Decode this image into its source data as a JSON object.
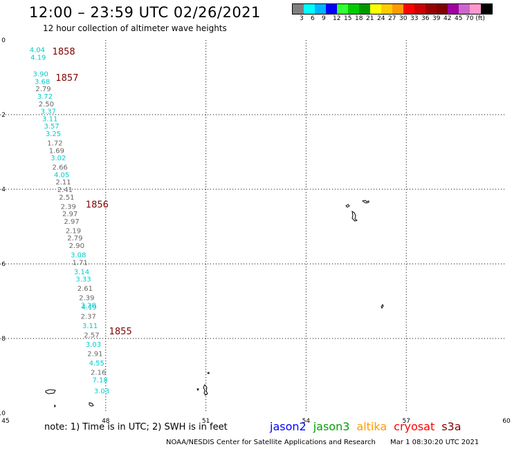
{
  "header": {
    "title": "12:00 – 23:59 UTC 02/26/2021",
    "subtitle": "12 hour collection of altimeter wave heights"
  },
  "legend": {
    "colors": [
      "#7f7f7f",
      "#00ffff",
      "#00b2ff",
      "#0000ff",
      "#33ff33",
      "#00cc00",
      "#009900",
      "#ffff00",
      "#ffcc00",
      "#ff9900",
      "#ff0000",
      "#cc0000",
      "#990000",
      "#800000",
      "#a000a0",
      "#cc66cc",
      "#ff99cc",
      "#000000"
    ],
    "labels": [
      "3",
      "6",
      "9",
      "12",
      "15",
      "18",
      "21",
      "24",
      "27",
      "30",
      "33",
      "36",
      "39",
      "42",
      "45",
      "70 (ft)"
    ]
  },
  "axes": {
    "x_ticks": [
      "45",
      "48",
      "51",
      "54",
      "57",
      "60"
    ],
    "y_ticks": [
      "0",
      "−2",
      "−4",
      "−6",
      "−8",
      "−10"
    ]
  },
  "chart_data": {
    "type": "scatter",
    "xlabel": "",
    "ylabel": "",
    "xlim": [
      45,
      60
    ],
    "ylim": [
      -10,
      0
    ],
    "grid": true,
    "times": [
      {
        "text": "1858",
        "x": 46.4,
        "y": -0.3
      },
      {
        "text": "1857",
        "x": 46.5,
        "y": -1.0
      },
      {
        "text": "1856",
        "x": 47.4,
        "y": -4.4
      },
      {
        "text": "1855",
        "x": 48.1,
        "y": -7.8
      }
    ],
    "points": [
      {
        "x": 45.95,
        "y": -0.25,
        "swh": "4.04",
        "color": "#00cccc"
      },
      {
        "x": 45.98,
        "y": -0.45,
        "swh": "4.19",
        "color": "#00cccc"
      },
      {
        "x": 46.05,
        "y": -0.9,
        "swh": "3.90",
        "color": "#00cccc"
      },
      {
        "x": 46.1,
        "y": -1.1,
        "swh": "3.68",
        "color": "#00cccc"
      },
      {
        "x": 46.13,
        "y": -1.3,
        "swh": "2.79",
        "color": "#666666"
      },
      {
        "x": 46.18,
        "y": -1.5,
        "swh": "3.72",
        "color": "#00cccc"
      },
      {
        "x": 46.22,
        "y": -1.7,
        "swh": "2.50",
        "color": "#666666"
      },
      {
        "x": 46.28,
        "y": -1.9,
        "swh": "3.37",
        "color": "#00cccc"
      },
      {
        "x": 46.33,
        "y": -2.1,
        "swh": "3.11",
        "color": "#00cccc"
      },
      {
        "x": 46.38,
        "y": -2.3,
        "swh": "3.57",
        "color": "#00cccc"
      },
      {
        "x": 46.43,
        "y": -2.5,
        "swh": "3.25",
        "color": "#00cccc"
      },
      {
        "x": 46.48,
        "y": -2.75,
        "swh": "1.72",
        "color": "#666666"
      },
      {
        "x": 46.53,
        "y": -2.95,
        "swh": "1.69",
        "color": "#666666"
      },
      {
        "x": 46.58,
        "y": -3.15,
        "swh": "3.02",
        "color": "#00cccc"
      },
      {
        "x": 46.63,
        "y": -3.4,
        "swh": "2.66",
        "color": "#666666"
      },
      {
        "x": 46.68,
        "y": -3.6,
        "swh": "4.05",
        "color": "#00cccc"
      },
      {
        "x": 46.73,
        "y": -3.8,
        "swh": "2.11",
        "color": "#666666"
      },
      {
        "x": 46.78,
        "y": -4.0,
        "swh": "2.41",
        "color": "#666666"
      },
      {
        "x": 46.83,
        "y": -4.2,
        "swh": "2.51",
        "color": "#666666"
      },
      {
        "x": 46.88,
        "y": -4.45,
        "swh": "2.39",
        "color": "#666666"
      },
      {
        "x": 46.93,
        "y": -4.65,
        "swh": "2.97",
        "color": "#666666"
      },
      {
        "x": 46.98,
        "y": -4.85,
        "swh": "2.97",
        "color": "#666666"
      },
      {
        "x": 47.03,
        "y": -5.1,
        "swh": "2.19",
        "color": "#666666"
      },
      {
        "x": 47.08,
        "y": -5.3,
        "swh": "2.79",
        "color": "#666666"
      },
      {
        "x": 47.13,
        "y": -5.5,
        "swh": "2.90",
        "color": "#666666"
      },
      {
        "x": 47.18,
        "y": -5.75,
        "swh": "3.08",
        "color": "#00cccc"
      },
      {
        "x": 47.23,
        "y": -5.95,
        "swh": "1.71",
        "color": "#666666"
      },
      {
        "x": 47.28,
        "y": -6.2,
        "swh": "3.14",
        "color": "#00cccc"
      },
      {
        "x": 47.33,
        "y": -6.4,
        "swh": "3.33",
        "color": "#00cccc"
      },
      {
        "x": 47.38,
        "y": -6.65,
        "swh": "2.61",
        "color": "#666666"
      },
      {
        "x": 47.43,
        "y": -6.9,
        "swh": "2.39",
        "color": "#666666"
      },
      {
        "x": 47.48,
        "y": -7.1,
        "swh": "3.28",
        "color": "#00cccc"
      },
      {
        "x": 47.5,
        "y": -7.15,
        "swh": "4.19",
        "color": "#00cccc"
      },
      {
        "x": 47.48,
        "y": -7.4,
        "swh": "2.37",
        "color": "#666666"
      },
      {
        "x": 47.53,
        "y": -7.65,
        "swh": "3.11",
        "color": "#00cccc"
      },
      {
        "x": 47.58,
        "y": -7.9,
        "swh": "2.57",
        "color": "#666666"
      },
      {
        "x": 47.63,
        "y": -8.15,
        "swh": "3.03",
        "color": "#00cccc"
      },
      {
        "x": 47.68,
        "y": -8.4,
        "swh": "2.91",
        "color": "#666666"
      },
      {
        "x": 47.73,
        "y": -8.65,
        "swh": "4.55",
        "color": "#00cccc"
      },
      {
        "x": 47.78,
        "y": -8.9,
        "swh": "2.16",
        "color": "#666666"
      },
      {
        "x": 47.83,
        "y": -9.1,
        "swh": "7.18",
        "color": "#00cccc"
      },
      {
        "x": 47.88,
        "y": -9.4,
        "swh": "3.03",
        "color": "#00cccc"
      }
    ]
  },
  "footer": {
    "note": "note:  1) Time is in UTC;  2) SWH is in feet",
    "satellites": [
      {
        "name": "jason2",
        "color": "#0000ff"
      },
      {
        "name": "jason3",
        "color": "#00a000"
      },
      {
        "name": "altika",
        "color": "#ff9900"
      },
      {
        "name": "cryosat",
        "color": "#ff0000"
      },
      {
        "name": "s3a",
        "color": "#800000"
      }
    ],
    "credit": "NOAA/NESDIS Center for Satellite Applications and Research",
    "timestamp": "Mar  1 08:30:20 UTC 2021"
  }
}
